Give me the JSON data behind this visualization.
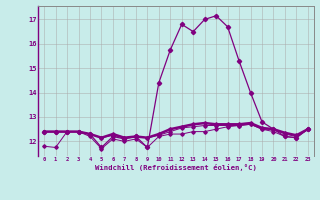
{
  "xlabel": "Windchill (Refroidissement éolien,°C)",
  "x": [
    0,
    1,
    2,
    3,
    4,
    5,
    6,
    7,
    8,
    9,
    10,
    11,
    12,
    13,
    14,
    15,
    16,
    17,
    18,
    19,
    20,
    21,
    22,
    23
  ],
  "line1": [
    11.8,
    11.75,
    12.4,
    12.4,
    12.2,
    11.7,
    12.1,
    12.0,
    12.1,
    11.75,
    12.2,
    12.3,
    12.3,
    12.4,
    12.4,
    12.5,
    12.6,
    12.65,
    12.7,
    12.5,
    12.4,
    12.2,
    12.15,
    12.5
  ],
  "line2": [
    12.4,
    12.4,
    12.4,
    12.4,
    12.3,
    12.15,
    12.25,
    12.15,
    12.2,
    12.15,
    12.25,
    12.4,
    12.55,
    12.6,
    12.65,
    12.65,
    12.65,
    12.65,
    12.7,
    12.5,
    12.5,
    12.3,
    12.2,
    12.5
  ],
  "line3": [
    12.4,
    12.4,
    12.4,
    12.4,
    12.3,
    12.15,
    12.3,
    12.15,
    12.2,
    12.15,
    12.3,
    12.5,
    12.6,
    12.7,
    12.75,
    12.7,
    12.7,
    12.7,
    12.75,
    12.55,
    12.5,
    12.35,
    12.25,
    12.5
  ],
  "line4": [
    12.4,
    12.4,
    12.4,
    12.4,
    12.3,
    11.75,
    12.2,
    12.1,
    12.2,
    11.75,
    14.4,
    15.75,
    16.8,
    16.5,
    17.0,
    17.15,
    16.7,
    15.3,
    14.0,
    12.8,
    12.5,
    12.2,
    12.15,
    12.5
  ],
  "color": "#800080",
  "bg_color": "#c8ecea",
  "ylim_min": 11.4,
  "ylim_max": 17.55,
  "yticks": [
    12,
    13,
    14,
    15,
    16,
    17
  ],
  "grid_color": "#aaaaaa",
  "spine_color": "#888888"
}
